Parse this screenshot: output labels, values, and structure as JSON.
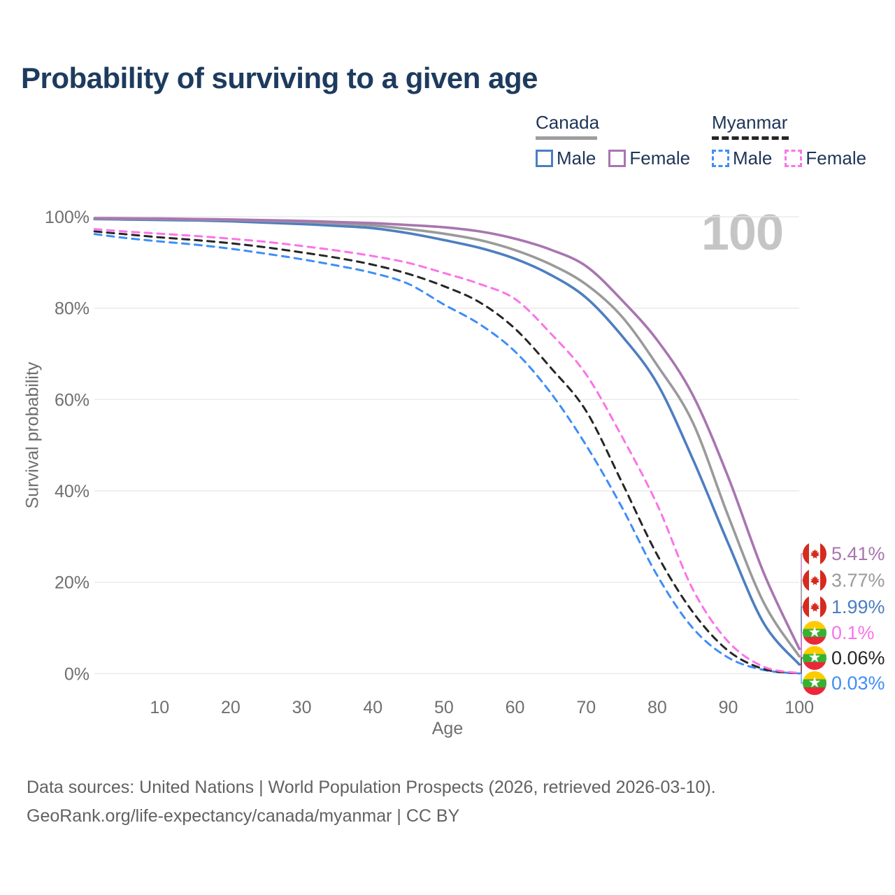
{
  "header": {
    "title": "Probability of surviving to a given age"
  },
  "watermark": "100",
  "legend": {
    "groups": [
      {
        "name": "Canada",
        "line_style": "solid",
        "underline_color": "#9e9e9e",
        "items": [
          {
            "label": "Male",
            "color": "#4d7ec0"
          },
          {
            "label": "Female",
            "color": "#a876b0"
          }
        ]
      },
      {
        "name": "Myanmar",
        "line_style": "dashed",
        "underline_color": "#262626",
        "items": [
          {
            "label": "Male",
            "color": "#3e8ef7"
          },
          {
            "label": "Female",
            "color": "#fb74e7"
          }
        ]
      }
    ]
  },
  "chart_data": {
    "type": "line",
    "title": "Probability of surviving to a given age",
    "xlabel": "Age",
    "ylabel": "Survival probability",
    "xlim": [
      0,
      100
    ],
    "ylim": [
      0,
      100
    ],
    "grid": "horizontal",
    "x_ticks": [
      10,
      20,
      30,
      40,
      50,
      60,
      70,
      80,
      90,
      100
    ],
    "y_tick_labels": [
      "0%",
      "20%",
      "40%",
      "60%",
      "80%",
      "100%"
    ],
    "y_tick_values": [
      0,
      20,
      40,
      60,
      80,
      100
    ],
    "x": [
      0,
      5,
      10,
      15,
      20,
      25,
      30,
      35,
      40,
      45,
      50,
      55,
      60,
      65,
      70,
      75,
      80,
      85,
      90,
      95,
      100
    ],
    "series": [
      {
        "name": "Canada Female",
        "country": "Canada",
        "flag": "canada",
        "dash": false,
        "color": "#a876b0",
        "end_label": "5.41%",
        "values": [
          99.7,
          99.65,
          99.6,
          99.5,
          99.4,
          99.25,
          99.1,
          98.85,
          98.6,
          98.2,
          97.7,
          96.8,
          95.2,
          92.8,
          89.2,
          81.8,
          73,
          61,
          43,
          22,
          5.41
        ]
      },
      {
        "name": "Canada Both sexes",
        "country": "Canada",
        "flag": "canada",
        "dash": false,
        "color": "#9a9a9a",
        "end_label": "3.77%",
        "values": [
          99.6,
          99.55,
          99.5,
          99.4,
          99.3,
          99.1,
          98.9,
          98.5,
          98.1,
          97.3,
          96.3,
          94.9,
          92.7,
          89.6,
          85.2,
          78.2,
          67.5,
          55,
          34.5,
          15.5,
          3.77
        ]
      },
      {
        "name": "Canada Male",
        "country": "Canada",
        "flag": "canada",
        "dash": false,
        "color": "#4d7ec0",
        "end_label": "1.99%",
        "values": [
          99.5,
          99.4,
          99.3,
          99.2,
          99.0,
          98.7,
          98.4,
          98.0,
          97.5,
          96.4,
          94.9,
          93.2,
          90.8,
          87.3,
          82.3,
          74,
          63.5,
          47,
          28.5,
          11,
          1.99
        ]
      },
      {
        "name": "Myanmar Female",
        "country": "Myanmar",
        "flag": "myanmar",
        "dash": true,
        "color": "#fb74e7",
        "end_label": "0.1%",
        "values": [
          97.3,
          96.8,
          96.3,
          95.8,
          95.2,
          94.5,
          93.6,
          92.6,
          91.4,
          89.9,
          87.7,
          85.3,
          82,
          74.5,
          65.5,
          52,
          37,
          18.5,
          7,
          1.5,
          0.1
        ]
      },
      {
        "name": "Myanmar Both sexes",
        "country": "Myanmar",
        "flag": "myanmar",
        "dash": true,
        "color": "#262626",
        "end_label": "0.06%",
        "values": [
          96.8,
          96.2,
          95.5,
          94.9,
          94.2,
          93.3,
          92.2,
          91,
          89.5,
          87.5,
          84.8,
          81.3,
          75.5,
          67,
          57.5,
          42,
          26,
          13.5,
          5,
          1,
          0.06
        ]
      },
      {
        "name": "Myanmar Male",
        "country": "Myanmar",
        "flag": "myanmar",
        "dash": true,
        "color": "#3e8ef7",
        "end_label": "0.03%",
        "values": [
          96.2,
          95.4,
          94.6,
          93.9,
          93,
          91.9,
          90.7,
          89.3,
          87.7,
          85.3,
          80.8,
          76.5,
          70.5,
          61.5,
          50,
          36.5,
          21.5,
          10,
          3.5,
          0.8,
          0.03
        ]
      }
    ]
  },
  "footer": {
    "line1": "Data sources: United Nations | World Population Prospects (2026, retrieved 2026-03-10).",
    "line2": "GeoRank.org/life-expectancy/canada/myanmar | CC BY"
  }
}
